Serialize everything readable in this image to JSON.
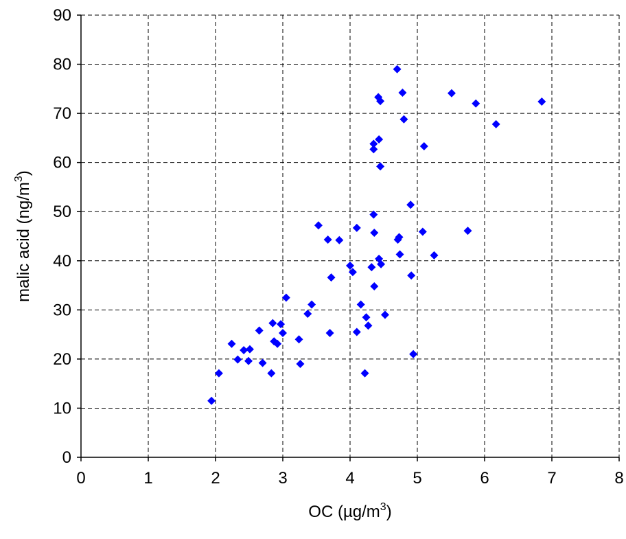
{
  "chart_data": {
    "type": "scatter",
    "xlabel": "OC (µg/m",
    "xlabel_sup": "3",
    "xlabel_end": ")",
    "ylabel": "malic acid (ng/m",
    "ylabel_sup": "3",
    "ylabel_end": ")",
    "xlim": [
      0,
      8
    ],
    "ylim": [
      0,
      90
    ],
    "xticks": [
      "0",
      "1",
      "2",
      "3",
      "4",
      "5",
      "6",
      "7",
      "8"
    ],
    "yticks": [
      "0",
      "10",
      "20",
      "30",
      "40",
      "50",
      "60",
      "70",
      "80",
      "90"
    ],
    "grid": true,
    "marker": "diamond",
    "marker_color": "#0000ff",
    "points": [
      [
        1.94,
        11.5
      ],
      [
        2.05,
        17.1
      ],
      [
        2.24,
        23.1
      ],
      [
        2.33,
        19.9
      ],
      [
        2.42,
        21.8
      ],
      [
        2.49,
        19.6
      ],
      [
        2.51,
        22.0
      ],
      [
        2.65,
        25.8
      ],
      [
        2.7,
        19.2
      ],
      [
        2.83,
        17.1
      ],
      [
        2.85,
        27.3
      ],
      [
        2.87,
        23.6
      ],
      [
        2.92,
        23.1
      ],
      [
        2.97,
        27.1
      ],
      [
        3.0,
        25.3
      ],
      [
        3.05,
        32.5
      ],
      [
        3.24,
        24.0
      ],
      [
        3.26,
        19.0
      ],
      [
        3.37,
        29.2
      ],
      [
        3.43,
        31.1
      ],
      [
        3.53,
        47.2
      ],
      [
        3.67,
        44.3
      ],
      [
        3.7,
        25.3
      ],
      [
        3.72,
        36.6
      ],
      [
        3.84,
        44.2
      ],
      [
        4.0,
        39.0
      ],
      [
        4.04,
        37.7
      ],
      [
        4.1,
        46.7
      ],
      [
        4.1,
        25.5
      ],
      [
        4.16,
        31.1
      ],
      [
        4.22,
        17.1
      ],
      [
        4.24,
        28.5
      ],
      [
        4.27,
        26.8
      ],
      [
        4.32,
        38.7
      ],
      [
        4.35,
        63.8
      ],
      [
        4.35,
        62.7
      ],
      [
        4.35,
        49.4
      ],
      [
        4.36,
        45.7
      ],
      [
        4.36,
        34.8
      ],
      [
        4.42,
        73.3
      ],
      [
        4.43,
        64.7
      ],
      [
        4.43,
        40.4
      ],
      [
        4.45,
        72.5
      ],
      [
        4.45,
        59.2
      ],
      [
        4.46,
        39.3
      ],
      [
        4.52,
        29.0
      ],
      [
        4.7,
        79.0
      ],
      [
        4.71,
        44.3
      ],
      [
        4.73,
        44.8
      ],
      [
        4.74,
        41.3
      ],
      [
        4.78,
        74.2
      ],
      [
        4.8,
        68.8
      ],
      [
        4.9,
        51.4
      ],
      [
        4.91,
        37.0
      ],
      [
        4.94,
        21.0
      ],
      [
        5.08,
        45.9
      ],
      [
        5.1,
        63.3
      ],
      [
        5.25,
        41.1
      ],
      [
        5.51,
        74.1
      ],
      [
        5.75,
        46.1
      ],
      [
        5.87,
        72.0
      ],
      [
        6.17,
        67.8
      ],
      [
        6.85,
        72.4
      ]
    ]
  }
}
